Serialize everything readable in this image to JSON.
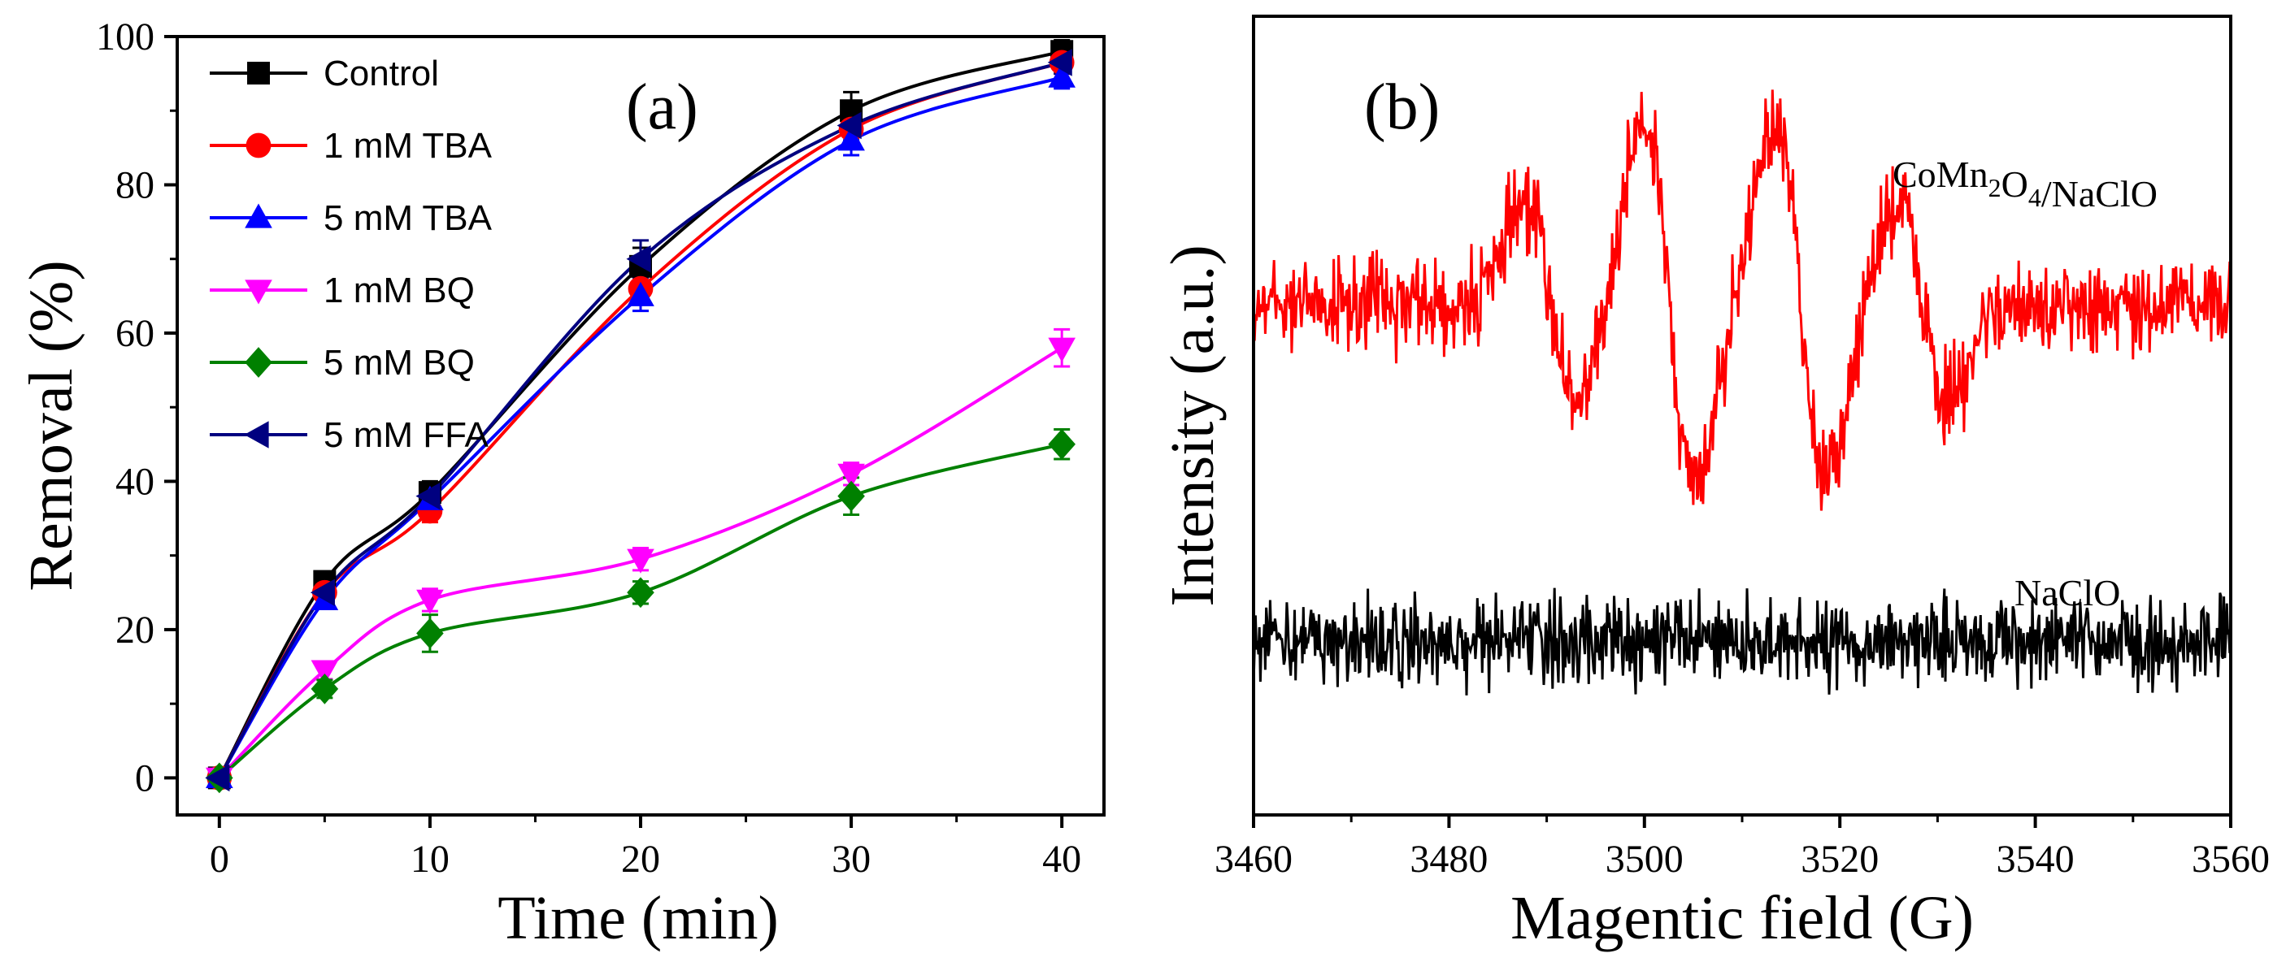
{
  "chart_data": [
    {
      "type": "line",
      "panel_label": "(a)",
      "xlabel": "Time (min)",
      "ylabel": "Removal (%)",
      "xlim": [
        -2,
        42
      ],
      "ylim": [
        -5,
        100
      ],
      "xticks": [
        0,
        10,
        20,
        30,
        40
      ],
      "yticks": [
        0,
        20,
        40,
        60,
        80,
        100
      ],
      "legend_position": "top-left",
      "x": [
        0,
        5,
        10,
        20,
        30,
        40
      ],
      "series": [
        {
          "name": "Control",
          "color": "#000000",
          "marker": "square",
          "values": [
            0,
            26.5,
            38.5,
            69,
            90,
            98
          ],
          "errors": [
            1,
            1.2,
            1.5,
            2.5,
            2.5,
            1.5
          ]
        },
        {
          "name": "1 mM TBA",
          "color": "#ff0000",
          "marker": "circle",
          "values": [
            0,
            25,
            36,
            66,
            87.5,
            96.5
          ],
          "errors": [
            1,
            1.2,
            1.5,
            2,
            2,
            1.5
          ]
        },
        {
          "name": "5 mM TBA",
          "color": "#0000ff",
          "marker": "triangle-up",
          "values": [
            0,
            24,
            37.5,
            65,
            86,
            94.5
          ],
          "errors": [
            1,
            1.2,
            1.5,
            2,
            2,
            1.5
          ]
        },
        {
          "name": "1 mM BQ",
          "color": "#ff00ff",
          "marker": "triangle-down",
          "values": [
            0,
            14.5,
            24,
            29.5,
            41,
            58
          ],
          "errors": [
            1,
            1.2,
            1.5,
            1.5,
            1.5,
            2.5
          ]
        },
        {
          "name": "5 mM BQ",
          "color": "#008000",
          "marker": "diamond",
          "values": [
            0,
            12,
            19.5,
            25,
            38,
            45
          ],
          "errors": [
            1,
            1.2,
            2.5,
            1.5,
            2.5,
            2
          ]
        },
        {
          "name": "5 mM FFA",
          "color": "#000080",
          "marker": "triangle-left",
          "values": [
            0,
            25,
            38,
            70,
            88,
            96.5
          ],
          "errors": [
            1,
            1.2,
            1.5,
            2.5,
            2,
            1.5
          ]
        }
      ]
    },
    {
      "type": "line",
      "panel_label": "(b)",
      "xlabel": "Magentic field (G)",
      "ylabel": "Intensity (a.u.)",
      "xlim": [
        3460,
        3560
      ],
      "xticks": [
        3460,
        3480,
        3500,
        3520,
        3540,
        3560
      ],
      "y_ticklabels": "none",
      "peak_centers": [
        3490.5,
        3502.5,
        3516.0,
        3528.5
      ],
      "series": [
        {
          "name": "CoMn2O4/NaClO",
          "color": "#ff0000",
          "label": "CoMn2O4/NaClO",
          "annotation": "CoMn₂O₄/NaClO",
          "kind": "EPR quartet (1:2:2:1 amplitude)",
          "peak_amplitudes": [
            0.55,
            1.0,
            1.0,
            0.55
          ]
        },
        {
          "name": "NaClO",
          "color": "#000000",
          "label": "NaClO",
          "annotation": "NaClO",
          "kind": "baseline noise"
        }
      ]
    }
  ]
}
